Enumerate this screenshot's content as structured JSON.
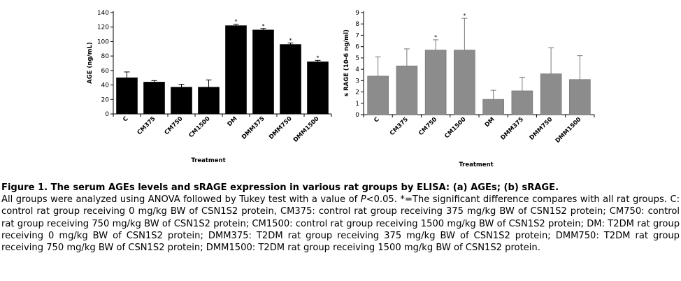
{
  "chart_data": [
    {
      "type": "bar",
      "panel": "a",
      "categories": [
        "C",
        "CM375",
        "CM750",
        "CM1500",
        "DM",
        "DMM375",
        "DMM750",
        "DMM1500"
      ],
      "values": [
        50,
        44,
        37,
        37,
        122,
        116,
        96,
        72
      ],
      "error": [
        8,
        2,
        4,
        10,
        2,
        2,
        2,
        2
      ],
      "significant": [
        false,
        false,
        false,
        false,
        true,
        true,
        true,
        true
      ],
      "marker": "*",
      "xlabel": "Treatment",
      "ylabel": "AGE (ng/mL)",
      "ylim": [
        0,
        140
      ],
      "yticks": [
        0,
        20,
        40,
        60,
        80,
        100,
        120,
        140
      ],
      "bar_color": "#000000",
      "grid": false
    },
    {
      "type": "bar",
      "panel": "b",
      "categories": [
        "C",
        "CM375",
        "CM750",
        "CM1500",
        "DM",
        "DMM375",
        "DMM750",
        "DMM1500"
      ],
      "values": [
        3.4,
        4.3,
        5.7,
        5.7,
        1.35,
        2.1,
        3.6,
        3.1
      ],
      "error": [
        1.7,
        1.5,
        0.9,
        2.8,
        0.8,
        1.2,
        2.3,
        2.1
      ],
      "significant": [
        false,
        false,
        true,
        true,
        false,
        false,
        false,
        false
      ],
      "marker": "*",
      "xlabel": "Treatment",
      "ylabel": "s RAGE (10-6 ng/ml)",
      "ylim": [
        0,
        9
      ],
      "yticks": [
        0,
        1,
        2,
        3,
        4,
        5,
        6,
        7,
        8,
        9
      ],
      "bar_color": "#8c8c8c",
      "grid": false
    }
  ],
  "caption": {
    "title": "Figure 1. The serum AGEs levels and sRAGE expression in various rat groups by ELISA: (a) AGEs; (b) sRAGE.",
    "body_part1": "All groups were analyzed using ANOVA followed by Tukey test with a value of ",
    "body_p": "P",
    "body_part2": "<0.05. *=The significant difference compares with all rat groups. C: control rat group receiving 0 mg/kg BW of CSN1S2 protein, CM375: control rat group receiving 375 mg/kg BW of CSN1S2 protein; CM750: control rat group receiving 750 mg/kg BW of CSN1S2 protein; CM1500: control rat group receiving 1500 mg/kg BW of CSN1S2 protein; DM: T2DM rat group receiving 0 mg/kg BW of CSN1S2 protein; DMM375: T2DM rat group receiving 375 mg/kg BW of CSN1S2 protein; DMM750: T2DM rat group receiving 750 mg/kg BW of CSN1S2 protein; DMM1500: T2DM rat group receiving 1500 mg/kg BW of CSN1S2 protein."
  }
}
